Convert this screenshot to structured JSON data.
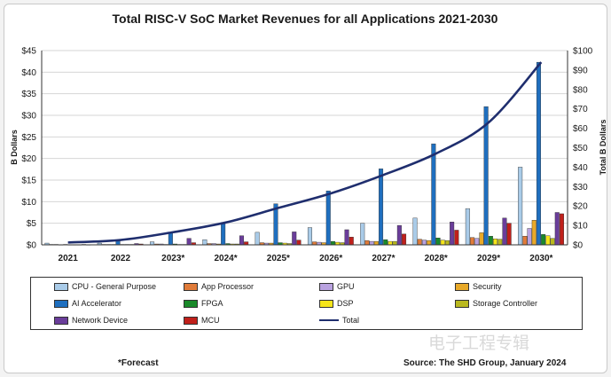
{
  "chart_data": {
    "type": "bar",
    "title": "Total RISC-V SoC Market Revenues for all Applications 2021-2030",
    "ylabel": "B Dollars",
    "y2label": "Total B Dollars",
    "ylim": [
      0,
      45
    ],
    "y2lim": [
      0,
      100
    ],
    "yticks": [
      "$0",
      "$5",
      "$10",
      "$15",
      "$20",
      "$25",
      "$30",
      "$35",
      "$40",
      "$45"
    ],
    "y2ticks": [
      "$0",
      "$10",
      "$20",
      "$30",
      "$40",
      "$50",
      "$60",
      "$70",
      "$80",
      "$90",
      "$100"
    ],
    "categories": [
      "2021",
      "2022",
      "2023*",
      "2024*",
      "2025*",
      "2026*",
      "2027*",
      "2028*",
      "2029*",
      "2030*"
    ],
    "series": [
      {
        "name": "CPU - General Purpose",
        "color": "#a9cbe8",
        "values": [
          0.4,
          0.4,
          0.7,
          1.2,
          2.9,
          4.0,
          5.0,
          6.2,
          8.4,
          18.0
        ]
      },
      {
        "name": "App Processor",
        "color": "#e07b39",
        "values": [
          0.1,
          0.1,
          0.2,
          0.3,
          0.5,
          0.7,
          1.0,
          1.3,
          1.7,
          2.0
        ]
      },
      {
        "name": "GPU",
        "color": "#b9a2e0",
        "values": [
          0.1,
          0.1,
          0.2,
          0.3,
          0.4,
          0.6,
          0.8,
          1.1,
          1.5,
          3.8
        ]
      },
      {
        "name": "Security",
        "color": "#e8a928",
        "values": [
          0.05,
          0.1,
          0.1,
          0.2,
          0.4,
          0.5,
          0.8,
          1.0,
          2.8,
          5.7
        ]
      },
      {
        "name": "AI Accelerator",
        "color": "#1f6fbf",
        "values": [
          0.1,
          1.0,
          2.8,
          5.2,
          9.5,
          12.5,
          17.6,
          23.4,
          32.0,
          42.3
        ]
      },
      {
        "name": "FPGA",
        "color": "#1a8a2a",
        "values": [
          0.05,
          0.1,
          0.2,
          0.3,
          0.5,
          0.8,
          1.2,
          1.6,
          2.0,
          2.4
        ]
      },
      {
        "name": "DSP",
        "color": "#f5e51a",
        "values": [
          0.05,
          0.1,
          0.1,
          0.2,
          0.4,
          0.6,
          0.8,
          1.1,
          1.4,
          2.1
        ]
      },
      {
        "name": "Storage Controller",
        "color": "#b9b81e",
        "values": [
          0.05,
          0.1,
          0.1,
          0.2,
          0.3,
          0.5,
          0.8,
          1.0,
          1.3,
          1.5
        ]
      },
      {
        "name": "Network Device",
        "color": "#6a3d9a",
        "values": [
          0.1,
          0.3,
          1.5,
          2.1,
          3.0,
          3.5,
          4.5,
          5.3,
          6.2,
          7.5
        ]
      },
      {
        "name": "MCU",
        "color": "#c0201b",
        "values": [
          0.05,
          0.2,
          0.5,
          0.7,
          1.1,
          1.8,
          2.5,
          3.4,
          5.0,
          7.2
        ]
      }
    ],
    "total": {
      "name": "Total",
      "color": "#1f2e6e",
      "axis": "right",
      "values": [
        1.2,
        2.5,
        6.5,
        11.5,
        19.0,
        26.5,
        36.0,
        47.0,
        63.0,
        94.0
      ]
    },
    "legend": "bottom"
  },
  "footnote": "*Forecast",
  "source": "Source: The SHD Group, January 2024",
  "watermark": "电子工程专辑"
}
